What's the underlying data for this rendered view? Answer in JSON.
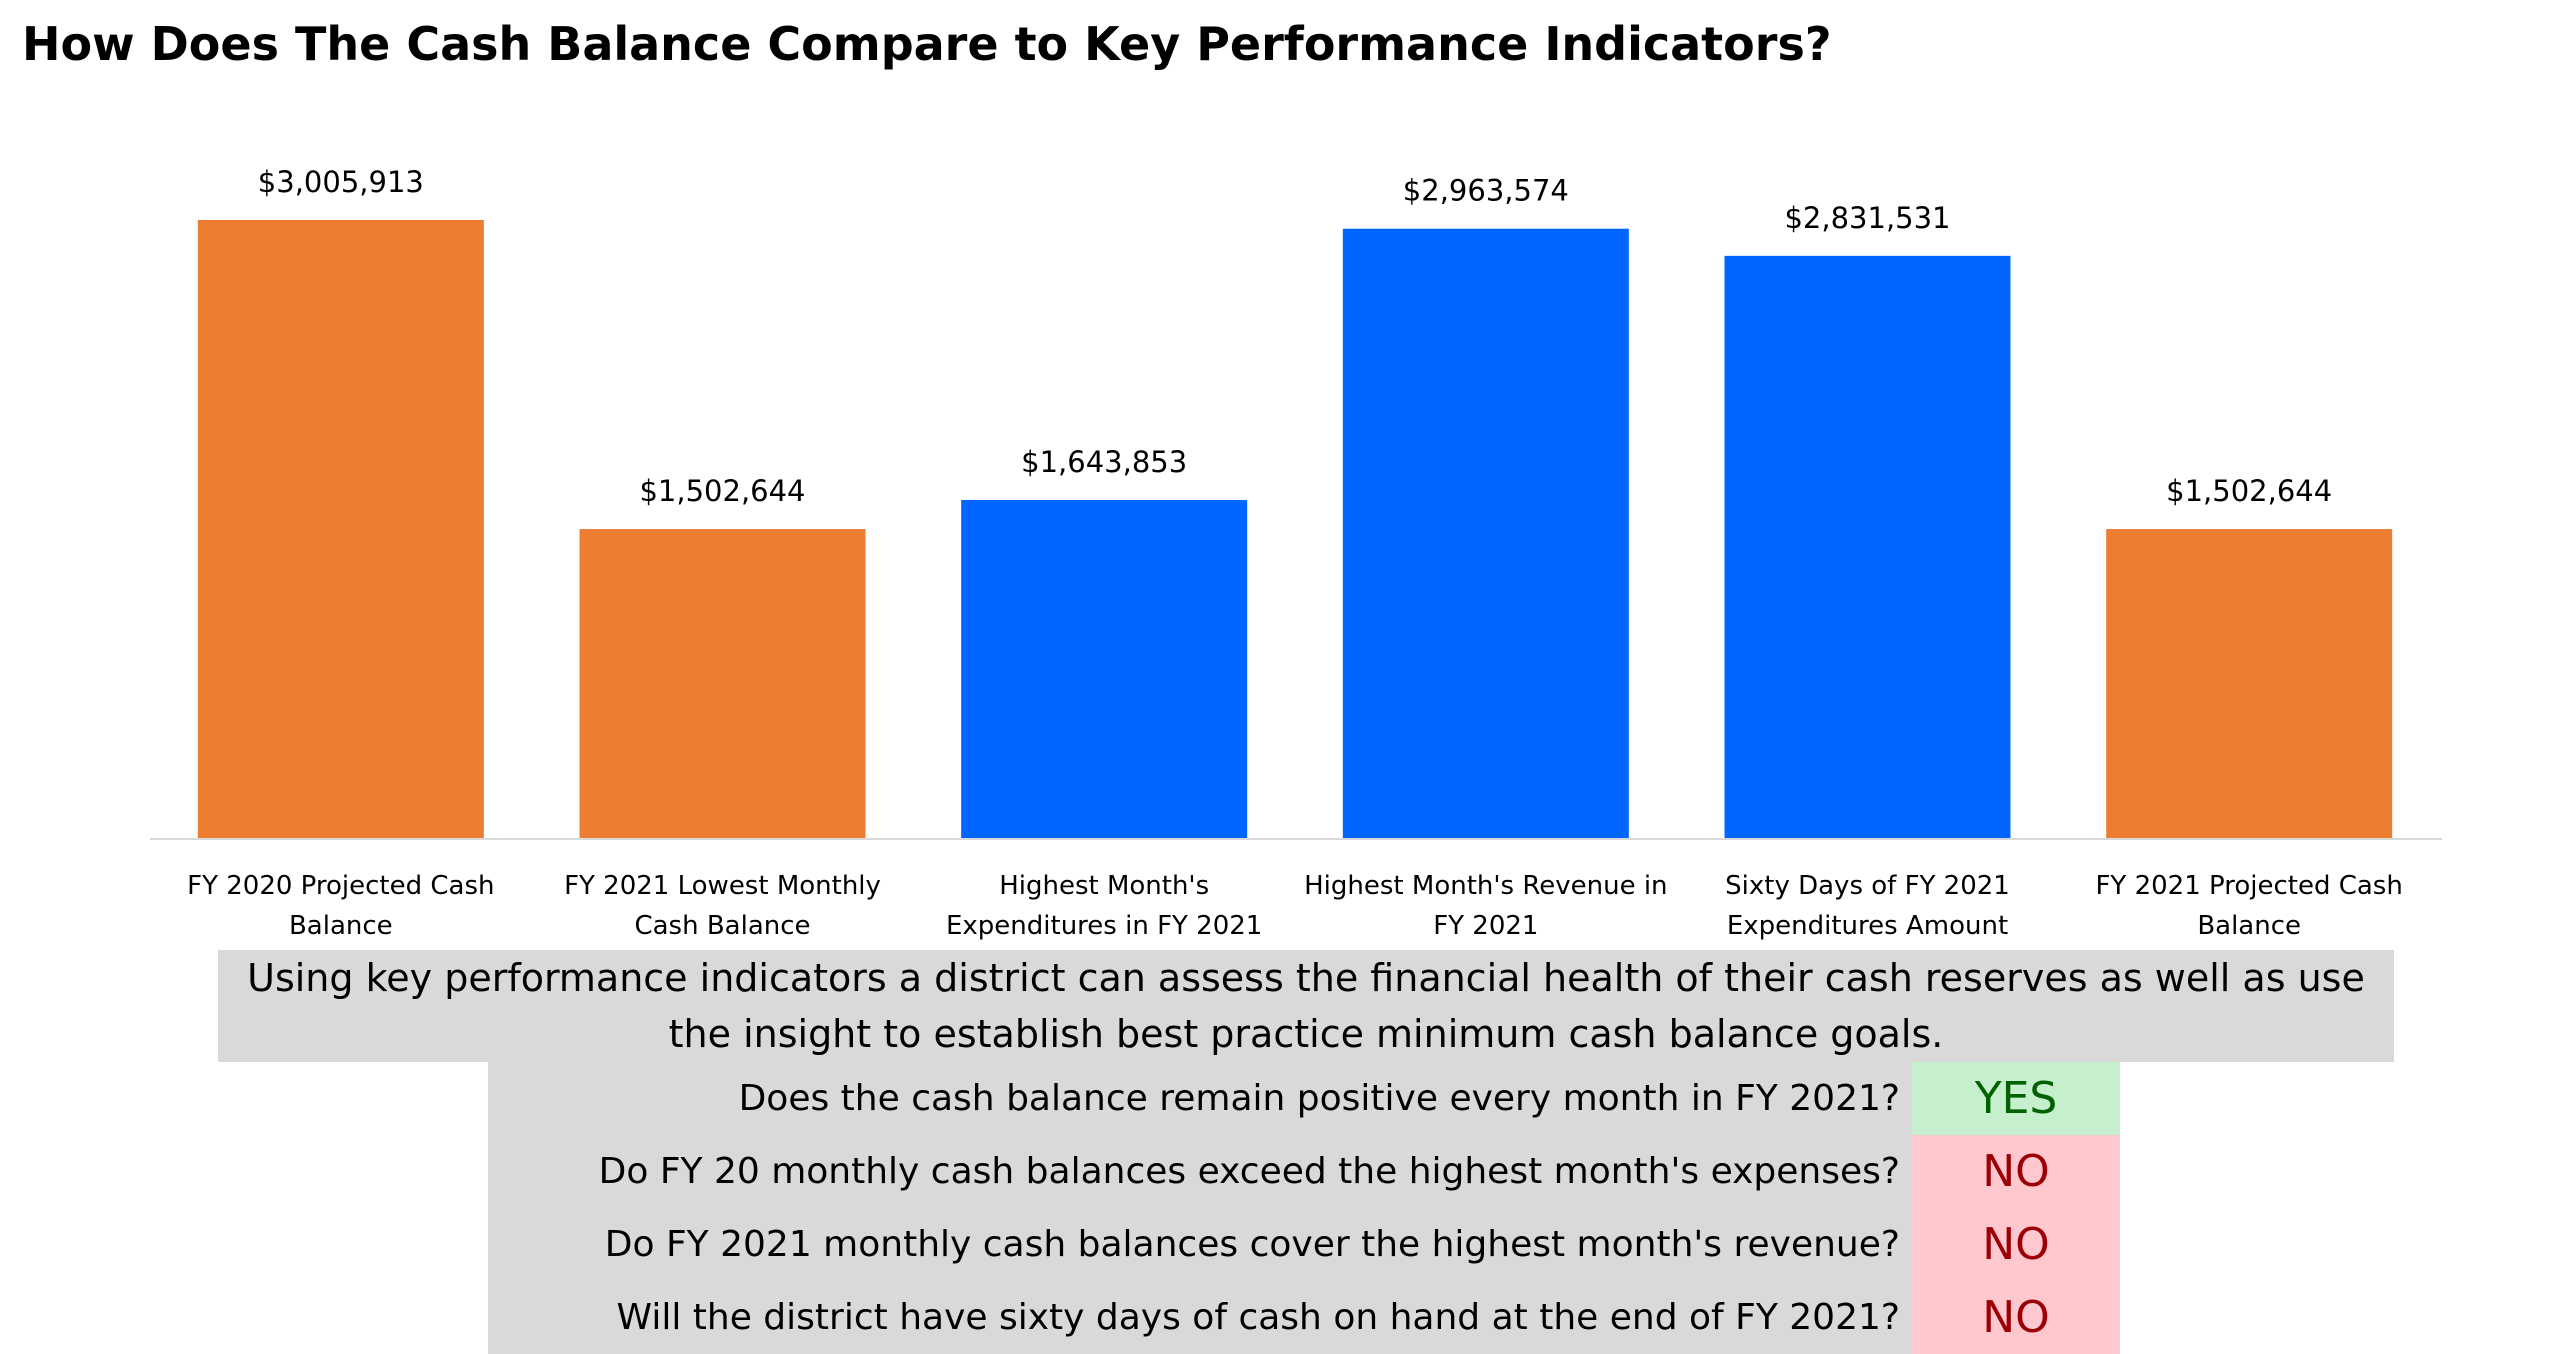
{
  "title": "How Does The Cash Balance Compare to Key Performance Indicators?",
  "chart_data": {
    "type": "bar",
    "title": "How Does The Cash Balance Compare to Key Performance Indicators?",
    "categories": [
      [
        "FY 2020 Projected Cash",
        "Balance"
      ],
      [
        "FY 2021 Lowest Monthly",
        "Cash Balance"
      ],
      [
        "Highest Month's",
        "Expenditures in FY 2021"
      ],
      [
        "Highest Month's Revenue in",
        "FY 2021"
      ],
      [
        "Sixty Days of FY 2021",
        "Expenditures Amount"
      ],
      [
        "FY 2021 Projected Cash",
        "Balance"
      ]
    ],
    "values": [
      3005913,
      1502644,
      1643853,
      2963574,
      2831531,
      1502644
    ],
    "labels": [
      "$3,005,913",
      "$1,502,644",
      "$1,643,853",
      "$2,963,574",
      "$2,831,531",
      "$1,502,644"
    ],
    "bar_colors": [
      "#ED7D31",
      "#ED7D31",
      "#0066FF",
      "#0066FF",
      "#0066FF",
      "#ED7D31"
    ],
    "ylim": [
      0,
      3005913
    ],
    "xlabel": "",
    "ylabel": "",
    "grid": false,
    "legend": "none"
  },
  "summary": "Using key performance indicators a district can assess the financial health of their cash reserves as well as use the insight to establish best practice minimum cash balance goals.",
  "questions": [
    {
      "text": "Does the cash balance remain positive every month in FY 2021?",
      "answer": "YES",
      "status": "yes"
    },
    {
      "text": "Do FY 20 monthly cash balances exceed the highest month's expenses?",
      "answer": "NO",
      "status": "no"
    },
    {
      "text": "Do FY 2021 monthly cash balances cover the highest month's revenue?",
      "answer": "NO",
      "status": "no"
    },
    {
      "text": "Will the district have sixty days of cash on hand at the end of FY 2021?",
      "answer": "NO",
      "status": "no"
    }
  ]
}
